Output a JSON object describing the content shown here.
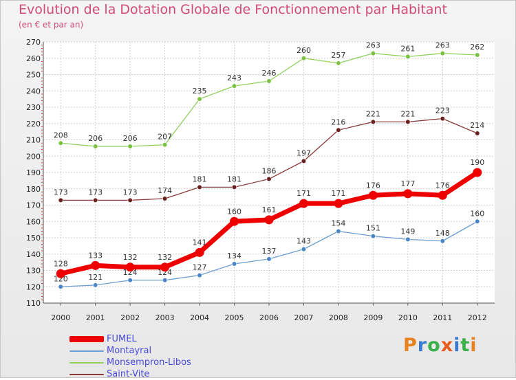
{
  "header": {
    "title": "Evolution de la Dotation Globale de Fonctionnement par Habitant",
    "subtitle": "(en € et par an)"
  },
  "logo": {
    "text": "Proxiti",
    "letter_colors": [
      "#e8821e",
      "#3a7ad0",
      "#3ab04a",
      "#e85a1e",
      "#3a7ad0",
      "#3ab04a",
      "#e8821e"
    ]
  },
  "chart_data": {
    "type": "line",
    "title": "Evolution de la Dotation Globale de Fonctionnement par Habitant",
    "subtitle": "(en € et par an)",
    "x": [
      "2000",
      "2001",
      "2002",
      "2003",
      "2004",
      "2005",
      "2006",
      "2007",
      "2008",
      "2009",
      "2010",
      "2011",
      "2012"
    ],
    "ylim": [
      110,
      270
    ],
    "yticks": [
      110,
      120,
      130,
      140,
      150,
      160,
      170,
      180,
      190,
      200,
      210,
      220,
      230,
      240,
      250,
      260,
      270
    ],
    "grid": true,
    "legend_position": "bottom-left",
    "series": [
      {
        "name": "Monsempron-Libos",
        "color": "#8fd05a",
        "marker": "#7cc242",
        "emphasis": false,
        "values": [
          208,
          206,
          206,
          207,
          235,
          243,
          246,
          260,
          257,
          263,
          261,
          263,
          262
        ]
      },
      {
        "name": "Saint-Vite",
        "color": "#8a3a3a",
        "marker": "#6b2020",
        "emphasis": false,
        "values": [
          173,
          173,
          173,
          174,
          181,
          181,
          186,
          197,
          216,
          221,
          221,
          223,
          214
        ]
      },
      {
        "name": "Montayral",
        "color": "#6a9ed0",
        "marker": "#4a86c6",
        "emphasis": false,
        "values": [
          120,
          121,
          124,
          124,
          127,
          134,
          137,
          143,
          154,
          151,
          149,
          148,
          160
        ]
      },
      {
        "name": "FUMEL",
        "color": "#ee0000",
        "marker": "#ee0000",
        "emphasis": true,
        "values": [
          128,
          133,
          132,
          132,
          141,
          160,
          161,
          171,
          171,
          176,
          177,
          176,
          190
        ]
      }
    ],
    "legend_order": [
      "FUMEL",
      "Montayral",
      "Monsempron-Libos",
      "Saint-Vite"
    ]
  }
}
